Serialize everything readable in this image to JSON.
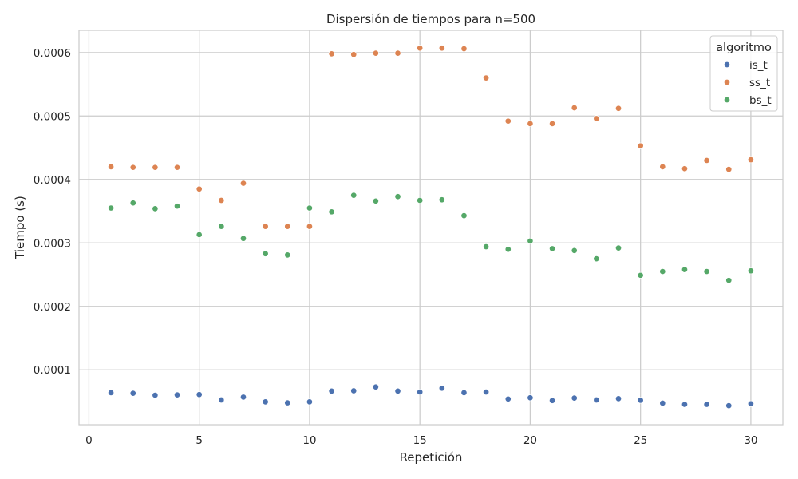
{
  "chart_data": {
    "type": "scatter",
    "title": "Dispersión de tiempos para n=500",
    "xlabel": "Repetición",
    "ylabel": "Tiempo (s)",
    "xlim": [
      -0.45,
      31.45
    ],
    "ylim": [
      1.35e-05,
      0.000635
    ],
    "xticks": [
      0,
      5,
      10,
      15,
      20,
      25,
      30
    ],
    "xtick_labels": [
      "0",
      "5",
      "10",
      "15",
      "20",
      "25",
      "30"
    ],
    "yticks": [
      0.0001,
      0.0002,
      0.0003,
      0.0004,
      0.0005,
      0.0006
    ],
    "ytick_labels": [
      "0.0001",
      "0.0002",
      "0.0003",
      "0.0004",
      "0.0005",
      "0.0006"
    ],
    "grid": true,
    "legend": {
      "title": "algoritmo",
      "placement": "top-right"
    },
    "x": [
      1,
      2,
      3,
      4,
      5,
      6,
      7,
      8,
      9,
      10,
      11,
      12,
      13,
      14,
      15,
      16,
      17,
      18,
      19,
      20,
      21,
      22,
      23,
      24,
      25,
      26,
      27,
      28,
      29,
      30
    ],
    "series": [
      {
        "name": "is_t",
        "color": "#4c72b0",
        "values": [
          6.4e-05,
          6.3e-05,
          6e-05,
          6.05e-05,
          6.1e-05,
          5.25e-05,
          5.7e-05,
          4.95e-05,
          4.8e-05,
          4.95e-05,
          6.65e-05,
          6.7e-05,
          7.3e-05,
          6.65e-05,
          6.5e-05,
          7.1e-05,
          6.4e-05,
          6.5e-05,
          5.4e-05,
          5.6e-05,
          5.15e-05,
          5.55e-05,
          5.25e-05,
          5.45e-05,
          5.2e-05,
          4.75e-05,
          4.55e-05,
          4.55e-05,
          4.35e-05,
          4.65e-05
        ]
      },
      {
        "name": "ss_t",
        "color": "#dd8452",
        "values": [
          0.00042,
          0.000419,
          0.000419,
          0.000419,
          0.000385,
          0.000367,
          0.000394,
          0.000326,
          0.000326,
          0.000326,
          0.000598,
          0.000597,
          0.000599,
          0.000599,
          0.000607,
          0.000607,
          0.000606,
          0.00056,
          0.000492,
          0.000488,
          0.000488,
          0.000513,
          0.000496,
          0.000512,
          0.000453,
          0.00042,
          0.000417,
          0.00043,
          0.000416,
          0.000431
        ]
      },
      {
        "name": "bs_t",
        "color": "#55a868",
        "values": [
          0.000355,
          0.000363,
          0.000354,
          0.000358,
          0.000313,
          0.000326,
          0.000307,
          0.000283,
          0.000281,
          0.000355,
          0.000349,
          0.000375,
          0.000366,
          0.000373,
          0.000367,
          0.000368,
          0.000343,
          0.000294,
          0.00029,
          0.000303,
          0.000291,
          0.000288,
          0.000275,
          0.000292,
          0.000249,
          0.000255,
          0.000258,
          0.000255,
          0.000241,
          0.000256
        ]
      }
    ]
  }
}
